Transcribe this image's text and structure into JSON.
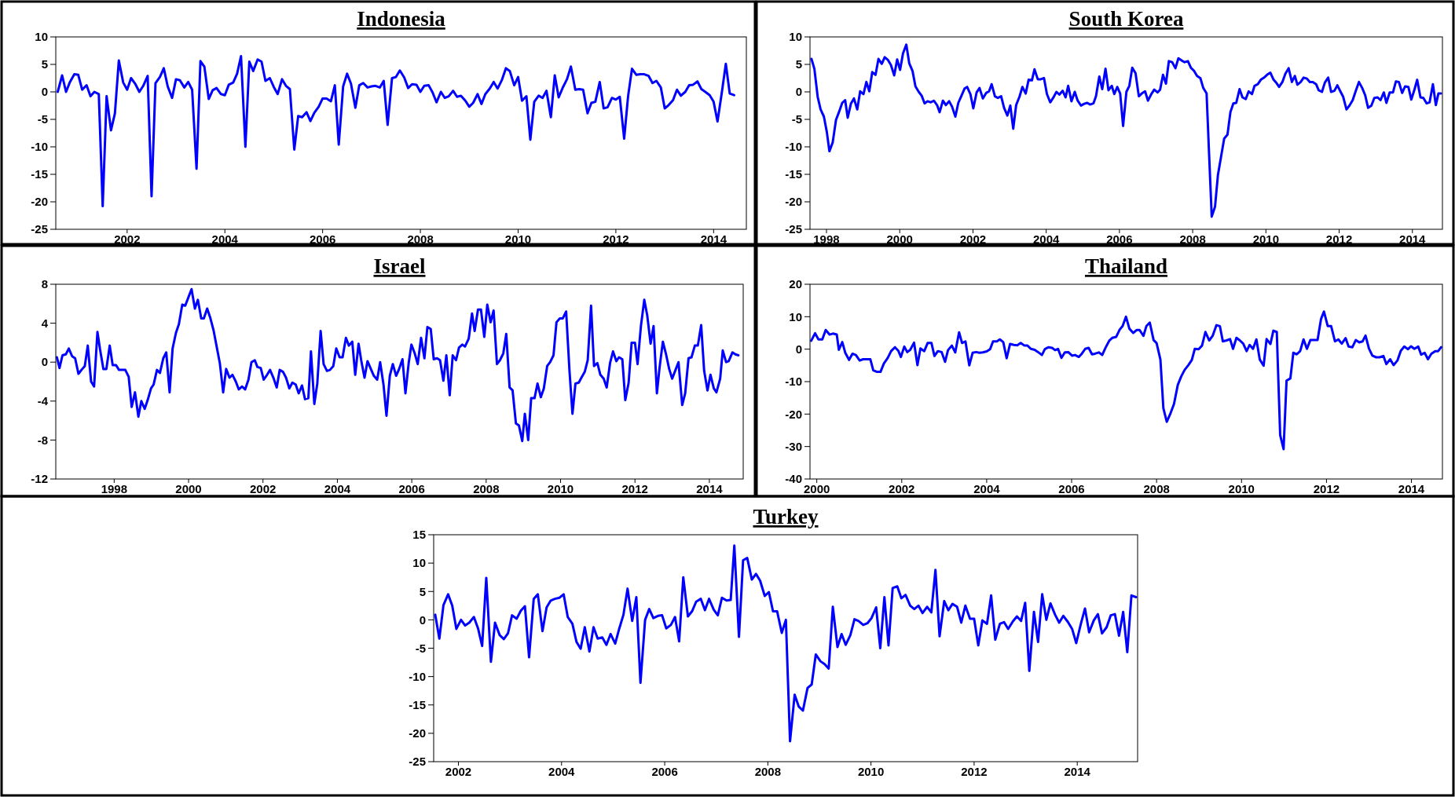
{
  "chart_data": [
    {
      "type": "line",
      "title": "Indonesia",
      "xlim": [
        2001.04,
        2015.17
      ],
      "ylim": [
        -25,
        10
      ],
      "yticks": [
        -25,
        -20,
        -15,
        -10,
        -5,
        0,
        5,
        10
      ],
      "xticks": [
        {
          "value": 2002.5,
          "label": "2002"
        },
        {
          "value": 2004.5,
          "label": "2004"
        },
        {
          "value": 2006.5,
          "label": "2006"
        },
        {
          "value": 2008.5,
          "label": "2008"
        },
        {
          "value": 2010.5,
          "label": "2010"
        },
        {
          "value": 2012.5,
          "label": "2012"
        },
        {
          "value": 2014.5,
          "label": "2014"
        }
      ],
      "x": [
        2001.08,
        2001.17,
        2001.25,
        2001.33,
        2001.42,
        2001.5,
        2001.58,
        2001.67,
        2001.75,
        2001.83,
        2001.92,
        2002.0,
        2002.08,
        2002.17,
        2002.25,
        2002.33,
        2002.42,
        2002.5,
        2002.58,
        2002.67,
        2002.75,
        2002.83,
        2002.92,
        2003.0,
        2003.08,
        2003.17,
        2003.25,
        2003.33,
        2003.42,
        2003.5,
        2003.58,
        2003.67,
        2003.75,
        2003.83,
        2003.92,
        2004.0,
        2004.08,
        2004.17,
        2004.25,
        2004.33,
        2004.42,
        2004.5,
        2004.58,
        2004.67,
        2004.75,
        2004.83,
        2004.92,
        2005.0,
        2005.08,
        2005.17,
        2005.25,
        2005.33,
        2005.42,
        2005.5,
        2005.58,
        2005.67,
        2005.75,
        2005.83,
        2005.92,
        2006.0,
        2006.08,
        2006.17,
        2006.25,
        2006.33,
        2006.42,
        2006.5,
        2006.58,
        2006.67,
        2006.75,
        2006.83,
        2006.92,
        2007.0,
        2007.08,
        2007.17,
        2007.25,
        2007.33,
        2007.42,
        2007.5,
        2007.58,
        2007.67,
        2007.75,
        2007.83,
        2007.92,
        2008.0,
        2008.08,
        2008.17,
        2008.25,
        2008.33,
        2008.42,
        2008.5,
        2008.58,
        2008.67,
        2008.75,
        2008.83,
        2008.92,
        2009.0,
        2009.08,
        2009.17,
        2009.25,
        2009.33,
        2009.42,
        2009.5,
        2009.58,
        2009.67,
        2009.75,
        2009.83,
        2009.92,
        2010.0,
        2010.08,
        2010.17,
        2010.25,
        2010.33,
        2010.42,
        2010.5,
        2010.58,
        2010.67,
        2010.75,
        2010.83,
        2010.92,
        2011.0,
        2011.08,
        2011.17,
        2011.25,
        2011.33,
        2011.42,
        2011.5,
        2011.58,
        2011.67,
        2011.75,
        2011.83,
        2011.92,
        2012.0,
        2012.08,
        2012.17,
        2012.25,
        2012.33,
        2012.42,
        2012.5,
        2012.58,
        2012.67,
        2012.75,
        2012.83,
        2012.92,
        2013.0,
        2013.08,
        2013.17,
        2013.25,
        2013.33,
        2013.42,
        2013.5,
        2013.58,
        2013.67,
        2013.75,
        2013.83,
        2013.92,
        2014.0,
        2014.08,
        2014.17,
        2014.25,
        2014.33,
        2014.42,
        2014.5,
        2014.58,
        2014.67,
        2014.75,
        2014.83,
        2014.92
      ],
      "series": [
        {
          "color": "#0000ff",
          "values": [
            0,
            3,
            0,
            1.8,
            3.2,
            3.1,
            0.4,
            1.2,
            -0.8,
            0,
            -0.4,
            -20.8,
            -0.8,
            -7,
            -3.9,
            5.7,
            1.7,
            0.4,
            2.5,
            1.4,
            0,
            1.1,
            2.9,
            -19,
            1.6,
            2.7,
            4.3,
            1.0,
            -1.1,
            2.3,
            2.1,
            0.8,
            1.8,
            0.4,
            -14,
            5.6,
            4.6,
            -1.3,
            0.3,
            0.7,
            -0.4,
            -0.6,
            1.3,
            1.7,
            3.3,
            6.5,
            -10,
            5.5,
            3.8,
            5.9,
            5.5,
            2.0,
            2.5,
            0.9,
            -0.4,
            2.3,
            1.1,
            0.5,
            -10.5,
            -4.4,
            -4.6,
            -3.7,
            -5.3,
            -3.8,
            -2.7,
            -1.2,
            -1.2,
            -1.7,
            1.2,
            -9.6,
            1.0,
            3.3,
            1.5,
            -2.9,
            1.2,
            1.6,
            0.8,
            1.0,
            1.1,
            0.8,
            2.0,
            -6,
            2.5,
            2.7,
            3.9,
            2.6,
            0.7,
            1.4,
            1.3,
            0,
            1.1,
            1.2,
            -0.1,
            -1.9,
            0,
            -1.1,
            -0.8,
            0.2,
            -0.9,
            -0.7,
            -1.6,
            -2.7,
            -2.0,
            -0.4,
            -2.2,
            -0.4,
            0.6,
            1.8,
            0.6,
            2.2,
            4.3,
            3.8,
            1.2,
            2.7,
            -1.6,
            -0.8,
            -8.7,
            -1.8,
            -0.7,
            -1.1,
            0.2,
            -4.6,
            3.0,
            -1.0,
            0.9,
            2.3,
            4.6,
            0.4,
            0.5,
            0.4,
            -3.9,
            -2.0,
            -1.8,
            1.8,
            -3.0,
            -2.8,
            -1.1,
            -1.4,
            -0.9,
            -8.5,
            -0.8,
            4.2,
            3.1,
            3.2,
            3.2,
            2.9,
            1.6,
            2.0,
            0.8,
            -3.0,
            -2.4,
            -1.5,
            0.4,
            -0.7,
            0,
            1.2,
            1.3,
            1.9,
            0.5,
            0,
            -0.6,
            -1.8,
            -5.4,
            0,
            5.1,
            -0.3,
            -0.6
          ]
        }
      ]
    },
    {
      "type": "line",
      "title": "South Korea",
      "xlim": [
        1998.05,
        2015.32
      ],
      "ylim": [
        -25,
        10
      ],
      "yticks": [
        -25,
        -20,
        -15,
        -10,
        -5,
        0,
        5,
        10
      ],
      "xticks": [
        {
          "value": 1998.5,
          "label": "1998"
        },
        {
          "value": 2000.5,
          "label": "2000"
        },
        {
          "value": 2002.5,
          "label": "2002"
        },
        {
          "value": 2004.5,
          "label": "2004"
        },
        {
          "value": 2006.5,
          "label": "2006"
        },
        {
          "value": 2008.5,
          "label": "2008"
        },
        {
          "value": 2010.5,
          "label": "2010"
        },
        {
          "value": 2012.5,
          "label": "2012"
        },
        {
          "value": 2014.5,
          "label": "2014"
        }
      ],
      "x": [
        1998.09,
        1998.17,
        1998.26,
        1998.34,
        1998.43,
        1998.51,
        1998.58,
        1998.67,
        1998.76,
        1998.84,
        1998.93,
        1999.01,
        1999.08,
        1999.17,
        1999.25,
        1999.34,
        1999.42,
        1999.51,
        1999.59,
        1999.67,
        1999.75,
        1999.84,
        1999.92,
        2000.01,
        2000.09,
        2000.18,
        2000.26,
        2000.35,
        2000.43,
        2000.51,
        2000.59,
        2000.68,
        2000.76,
        2000.85,
        2000.93,
        2001.02,
        2001.1,
        2001.18,
        2001.26,
        2001.35,
        2001.43,
        2001.52,
        2001.59,
        2001.68,
        2001.76,
        2001.85,
        2001.93,
        2002.02,
        2002.1,
        2002.18,
        2002.27,
        2002.34,
        2002.43,
        2002.51,
        2002.6,
        2002.68,
        2002.77,
        2002.86,
        2002.94,
        2003.01,
        2003.1,
        2003.18,
        2003.27,
        2003.35,
        2003.44,
        2003.52,
        2003.6,
        2003.68,
        2003.77,
        2003.85,
        2003.94,
        2004.02,
        2004.11,
        2004.18,
        2004.27,
        2004.35,
        2004.44,
        2004.52,
        2004.61,
        2004.69,
        2004.78,
        2004.86,
        2004.95,
        2005.03,
        2005.1,
        2005.19,
        2005.28,
        2005.36,
        2005.45,
        2005.53,
        2005.62,
        2005.7,
        2005.79,
        2005.86,
        2005.95,
        2006.03,
        2006.12,
        2006.2,
        2006.29,
        2006.36,
        2006.44,
        2006.52,
        2006.6,
        2006.69,
        2006.77,
        2006.85,
        2006.94,
        2007.03,
        2007.11,
        2007.2,
        2007.28,
        2007.37,
        2007.45,
        2007.54,
        2007.61,
        2007.69,
        2007.77,
        2007.85,
        2007.94,
        2008.03,
        2008.11,
        2008.2,
        2008.28,
        2008.37,
        2008.45,
        2008.54,
        2008.62,
        2008.71,
        2008.79,
        2008.88,
        2008.95,
        2009.02,
        2009.11,
        2009.19,
        2009.28,
        2009.36,
        2009.45,
        2009.53,
        2009.61,
        2009.69,
        2009.78,
        2009.86,
        2009.95,
        2010.03,
        2010.12,
        2010.19,
        2010.28,
        2010.36,
        2010.45,
        2010.53,
        2010.62,
        2010.71,
        2010.79,
        2010.86,
        2010.95,
        2011.03,
        2011.12,
        2011.21,
        2011.29,
        2011.36,
        2011.45,
        2011.53,
        2011.62,
        2011.7,
        2011.78,
        2011.87,
        2011.94,
        2012.03,
        2012.11,
        2012.2,
        2012.28,
        2012.37,
        2012.45,
        2012.54,
        2012.61,
        2012.7,
        2012.78,
        2012.87,
        2012.95,
        2013.04,
        2013.13,
        2013.21,
        2013.29,
        2013.38,
        2013.46,
        2013.55,
        2013.63,
        2013.72,
        2013.79,
        2013.88,
        2013.97,
        2014.05,
        2014.13,
        2014.22,
        2014.3,
        2014.39,
        2014.47,
        2014.56,
        2014.63,
        2014.72,
        2014.8,
        2014.89,
        2014.97,
        2015.06,
        2015.14,
        2015.21,
        2015.28
      ],
      "series": [
        {
          "color": "#0000ff",
          "values": [
            6.0,
            4.2,
            -0.9,
            -3.2,
            -4.5,
            -7.3,
            -10.8,
            -9.2,
            -5.1,
            -3.7,
            -2.0,
            -1.5,
            -4.7,
            -2.1,
            -1.2,
            -3.2,
            0.1,
            -0.4,
            1.8,
            0.1,
            3.6,
            3.1,
            6.0,
            5.1,
            6.3,
            5.8,
            4.9,
            3.0,
            5.9,
            4.0,
            7.0,
            8.6,
            5.2,
            3.8,
            1.0,
            0,
            -0.7,
            -2.1,
            -1.7,
            -1.9,
            -1.6,
            -2.4,
            -3.7,
            -1.6,
            -2.4,
            -1.7,
            -2.7,
            -4.5,
            -2.0,
            -0.8,
            0.6,
            0.9,
            -0.4,
            -3.0,
            -0.1,
            0.7,
            -1.2,
            -0.2,
            0.1,
            1.4,
            -0.8,
            -1.1,
            -0.8,
            -2.9,
            -4.3,
            -2.5,
            -6.7,
            -2.4,
            -0.9,
            0.9,
            -0.3,
            2.2,
            2.1,
            4.1,
            2.3,
            2.3,
            2.5,
            -0.4,
            -1.9,
            -1.1,
            0,
            -0.5,
            0.2,
            -1.0,
            1.1,
            -1.7,
            0,
            -1.6,
            -2.5,
            -2.2,
            -2.0,
            -2.3,
            -2.1,
            -0.8,
            2.8,
            0.5,
            4.2,
            0.3,
            1.1,
            -0.4,
            0.9,
            -0.3,
            -6.2,
            0,
            1.1,
            4.4,
            3.4,
            -0.8,
            -0.3,
            0.1,
            -1.6,
            -0.4,
            0.4,
            -0.1,
            0.4,
            3.1,
            1.5,
            5.6,
            5.4,
            4.3,
            6.1,
            5.7,
            5.4,
            5.6,
            4.4,
            3.8,
            2.9,
            2.5,
            0.7,
            -0.3,
            -11.6,
            -22.7,
            -20.9,
            -15.1,
            -11.6,
            -8.5,
            -7.8,
            -3.7,
            -2.1,
            -2.0,
            0.5,
            -1.0,
            -1.3,
            0.1,
            -0.4,
            1.1,
            1.4,
            2.2,
            2.6,
            3.1,
            3.5,
            2.2,
            1.6,
            0.9,
            1.8,
            3.3,
            4.3,
            1.8,
            2.9,
            1.3,
            1.8,
            2.6,
            2.4,
            1.8,
            1.8,
            1.4,
            0.3,
            0,
            1.7,
            2.6,
            0,
            0.2,
            1.2,
            0,
            -0.9,
            -3.2,
            -2.5,
            -1.5,
            0.1,
            1.8,
            0.7,
            -0.6,
            -2.9,
            -2.5,
            -1.1,
            -1.0,
            -1.5,
            -0.1,
            -2.0,
            -0.1,
            -0.1,
            1.9,
            1.8,
            -0.2,
            1.0,
            0.9,
            -1.4,
            0.5,
            2.2,
            -1.0,
            -1.1,
            -2.1,
            -1.9,
            1.4,
            -2.4,
            -0.3,
            -0.3
          ]
        }
      ]
    },
    {
      "type": "line",
      "title": "Israel",
      "xlim": [
        1996.93,
        2015.41
      ],
      "ylim": [
        -12,
        8
      ],
      "yticks": [
        -12,
        -8,
        -4,
        0,
        4,
        8
      ],
      "xticks": [
        {
          "value": 1998.5,
          "label": "1998"
        },
        {
          "value": 2000.5,
          "label": "2000"
        },
        {
          "value": 2002.5,
          "label": "2002"
        },
        {
          "value": 2004.5,
          "label": "2004"
        },
        {
          "value": 2006.5,
          "label": "2006"
        },
        {
          "value": 2008.5,
          "label": "2008"
        },
        {
          "value": 2010.5,
          "label": "2010"
        },
        {
          "value": 2012.5,
          "label": "2012"
        },
        {
          "value": 2014.5,
          "label": "2014"
        }
      ],
      "x": [
        1996.96,
        1997.03,
        1997.11,
        1997.2,
        1997.28,
        1997.37,
        1997.45,
        1997.54,
        1997.62,
        1997.71,
        1997.79,
        1997.88,
        1997.96,
        1998.05,
        1998.12,
        1998.21,
        1998.29,
        1998.38,
        1998.46,
        1998.55,
        1998.63,
        1998.72,
        1998.8,
        1998.89,
        1998.97,
        1999.06,
        1999.15,
        1999.23,
        1999.32,
        1999.4,
        1999.49,
        1999.56,
        1999.65,
        1999.73,
        1999.82,
        1999.9,
        1999.99,
        2000.07,
        2000.16,
        2000.24,
        2000.33,
        2000.41,
        2000.5,
        2000.58,
        2000.67,
        2000.75,
        2000.84,
        2000.91,
        2001.0,
        2001.08,
        2001.17,
        2001.25,
        2001.34,
        2001.43,
        2001.51,
        2001.6,
        2001.68,
        2001.77,
        2001.85,
        2001.94,
        2002.02,
        2002.11,
        2002.19,
        2002.28,
        2002.35,
        2002.44,
        2002.52,
        2002.61,
        2002.69,
        2002.78,
        2002.87,
        2002.95,
        2003.04,
        2003.12,
        2003.21,
        2003.29,
        2003.38,
        2003.46,
        2003.55,
        2003.63,
        2003.72,
        2003.79,
        2003.88,
        2003.96,
        2004.05,
        2004.13,
        2004.22,
        2004.3,
        2004.39,
        2004.47,
        2004.56,
        2004.64,
        2004.73,
        2004.81,
        2004.9,
        2004.98,
        2005.07,
        2005.14,
        2005.23,
        2005.31,
        2005.4,
        2005.48,
        2005.57,
        2005.65,
        2005.74,
        2005.82,
        2005.91,
        2005.99,
        2006.08,
        2006.16,
        2006.25,
        2006.33,
        2006.42,
        2006.49,
        2006.58,
        2006.66,
        2006.75,
        2006.84,
        2006.92,
        2007.01,
        2007.09,
        2007.18,
        2007.26,
        2007.35,
        2007.43,
        2007.52,
        2007.6,
        2007.69,
        2007.77,
        2007.86,
        2007.93,
        2008.03,
        2008.12,
        2008.19,
        2008.28,
        2008.36,
        2008.45,
        2008.53,
        2008.62,
        2008.7,
        2008.79,
        2008.87,
        2008.96,
        2009.04,
        2009.13,
        2009.21,
        2009.3,
        2009.38,
        2009.47,
        2009.54,
        2009.63,
        2009.71,
        2009.8,
        2009.88,
        2009.97,
        2010.05,
        2010.14,
        2010.22,
        2010.31,
        2010.39,
        2010.48,
        2010.56,
        2010.65,
        2010.74,
        2010.82,
        2010.9,
        2010.99,
        2011.06,
        2011.15,
        2011.23,
        2011.32,
        2011.4,
        2011.49,
        2011.57,
        2011.66,
        2011.74,
        2011.83,
        2011.91,
        2012.0,
        2012.07,
        2012.16,
        2012.24,
        2012.33,
        2012.41,
        2012.5,
        2012.57,
        2012.66,
        2012.75,
        2012.83,
        2012.92,
        2013.0,
        2013.09,
        2013.16,
        2013.25,
        2013.33,
        2013.42,
        2013.5,
        2013.59,
        2013.67,
        2013.77,
        2013.85,
        2013.94,
        2014.02,
        2014.11,
        2014.19,
        2014.28,
        2014.36,
        2014.45,
        2014.53,
        2014.62,
        2014.69,
        2014.79,
        2014.86,
        2014.95,
        2015.02,
        2015.12,
        2015.2,
        2015.28
      ],
      "series": [
        {
          "color": "#0000ff",
          "values": [
            0.5,
            -0.6,
            0.7,
            0.8,
            1.4,
            0.6,
            0.4,
            -1.2,
            -0.8,
            -0.4,
            1.7,
            -2.0,
            -2.5,
            3.1,
            1.3,
            -0.7,
            -0.7,
            1.7,
            -0.3,
            -0.3,
            -0.8,
            -0.8,
            -0.8,
            -1.5,
            -4.6,
            -3.1,
            -5.6,
            -4.0,
            -4.8,
            -3.9,
            -2.7,
            -2.3,
            -0.8,
            -1.1,
            0.4,
            1.0,
            -3.1,
            1.4,
            3.0,
            3.9,
            5.9,
            5.8,
            6.7,
            7.5,
            5.5,
            6.4,
            4.5,
            4.5,
            5.5,
            4.6,
            3.3,
            1.7,
            -0.1,
            -3.1,
            -0.7,
            -1.6,
            -1.3,
            -2.0,
            -2.8,
            -2.5,
            -2.8,
            -1.8,
            0,
            0.2,
            -0.5,
            -0.6,
            -1.8,
            -1.3,
            -0.8,
            -1.6,
            -2.6,
            -0.8,
            -1.0,
            -1.6,
            -2.7,
            -2.1,
            -2.3,
            -3.2,
            -2.4,
            -3.8,
            -3.7,
            1.1,
            -4.3,
            -2.2,
            3.2,
            -0.2,
            -0.9,
            -0.8,
            -0.4,
            1.4,
            0.5,
            0.5,
            2.5,
            1.7,
            2.1,
            -1.3,
            1.9,
            0.2,
            -1.6,
            0.1,
            -0.7,
            -1.4,
            -1.8,
            0,
            -2.3,
            -5.5,
            -1.4,
            -0.2,
            -1.4,
            -0.7,
            0.3,
            -3.2,
            0,
            1.8,
            0.9,
            -0.2,
            2.5,
            0.4,
            3.6,
            3.4,
            0.3,
            0.4,
            0.2,
            -1.9,
            0.7,
            -3.4,
            0.7,
            0.2,
            1.5,
            1.8,
            1.6,
            2.4,
            5.0,
            3.2,
            5.4,
            5.4,
            2.6,
            5.9,
            4.1,
            5.3,
            -0.2,
            0.2,
            0.9,
            2.9,
            -2.6,
            -2.9,
            -6.3,
            -6.5,
            -8.1,
            -5.3,
            -8.0,
            -3.7,
            -3.7,
            -2.2,
            -3.6,
            -2.7,
            -0.4,
            0,
            0.7,
            4.1,
            4.5,
            4.5,
            5.2,
            -0.9,
            -5.3,
            -2.2,
            -2.1,
            -1.6,
            -1.0,
            0.2,
            5.8,
            -0.4,
            -0.1,
            -1.3,
            -1.7,
            -2.6,
            -0.1,
            1.1,
            0.1,
            0.5,
            0.3,
            -3.9,
            -2.1,
            2.0,
            2.0,
            -0.2,
            3.7,
            6.4,
            4.8,
            1.9,
            3.7,
            -3.2,
            -0.6,
            2.1,
            0.9,
            -0.7,
            -1.7,
            -0.8,
            0,
            -4.4,
            -3.2,
            0.4,
            0.5,
            1.7,
            1.7,
            3.8,
            -0.9,
            -2.9,
            -1.3,
            -2.7,
            -3.1,
            -1.7,
            1.2,
            0,
            0.1,
            1.0,
            0.8,
            0.7
          ]
        }
      ]
    },
    {
      "type": "line",
      "title": "Thailand",
      "xlim": [
        2000.34,
        2015.23
      ],
      "ylim": [
        -40,
        20
      ],
      "yticks": [
        -40,
        -30,
        -20,
        -10,
        0,
        10,
        20
      ],
      "xticks": [
        {
          "value": 2000.5,
          "label": "2000"
        },
        {
          "value": 2002.5,
          "label": "2002"
        },
        {
          "value": 2004.5,
          "label": "2004"
        },
        {
          "value": 2006.5,
          "label": "2006"
        },
        {
          "value": 2008.5,
          "label": "2008"
        },
        {
          "value": 2010.5,
          "label": "2010"
        },
        {
          "value": 2012.5,
          "label": "2012"
        },
        {
          "value": 2014.5,
          "label": "2014"
        }
      ],
      "x": [
        2000.37,
        2000.46,
        2000.54,
        2000.63,
        2000.71,
        2000.8,
        2000.88,
        2000.97,
        2001.02,
        2001.1,
        2001.17,
        2001.26,
        2001.34,
        2001.42,
        2001.51,
        2001.59,
        2001.76,
        2001.83,
        2001.92,
        2002.0,
        2002.08,
        2002.17,
        2002.25,
        2002.34,
        2002.42,
        2002.48,
        2002.56,
        2002.63,
        2002.7,
        2002.79,
        2002.87,
        2002.94,
        2003.03,
        2003.11,
        2003.2,
        2003.27,
        2003.35,
        2003.44,
        2003.52,
        2003.59,
        2003.68,
        2003.76,
        2003.85,
        2003.92,
        2004.0,
        2004.09,
        2004.17,
        2004.25,
        2004.33,
        2004.41,
        2004.5,
        2004.58,
        2004.65,
        2004.74,
        2004.81,
        2004.89,
        2004.97,
        2005.05,
        2005.14,
        2005.22,
        2005.3,
        2005.39,
        2005.46,
        2005.54,
        2005.63,
        2005.71,
        2005.8,
        2005.87,
        2005.95,
        2006.04,
        2006.11,
        2006.18,
        2006.26,
        2006.34,
        2006.42,
        2006.51,
        2006.58,
        2006.67,
        2006.74,
        2006.82,
        2006.9,
        2006.98,
        2007.05,
        2007.14,
        2007.22,
        2007.3,
        2007.39,
        2007.46,
        2007.55,
        2007.63,
        2007.7,
        2007.78,
        2007.86,
        2007.95,
        2008.03,
        2008.1,
        2008.19,
        2008.26,
        2008.34,
        2008.43,
        2008.5,
        2008.59,
        2008.66,
        2008.74,
        2008.83,
        2008.91,
        2009.0,
        2009.08,
        2009.16,
        2009.25,
        2009.33,
        2009.4,
        2009.49,
        2009.57,
        2009.65,
        2009.74,
        2009.82,
        2009.91,
        2009.99,
        2010.06,
        2010.15,
        2010.23,
        2010.3,
        2010.38,
        2010.46,
        2010.54,
        2010.62,
        2010.69,
        2010.77,
        2010.85,
        2010.93,
        2011.02,
        2011.09,
        2011.18,
        2011.25,
        2011.33,
        2011.41,
        2011.49,
        2011.56,
        2011.65,
        2011.72,
        2011.8,
        2011.88,
        2011.96,
        2012.04,
        2012.12,
        2012.2,
        2012.29,
        2012.37,
        2012.44,
        2012.53,
        2012.61,
        2012.7,
        2012.78,
        2012.86,
        2012.95,
        2013.02,
        2013.11,
        2013.19,
        2013.27,
        2013.35,
        2013.42,
        2013.5,
        2013.58,
        2013.67,
        2013.75,
        2013.84,
        2013.91,
        2014.0,
        2014.08,
        2014.17,
        2014.25,
        2014.33,
        2014.42,
        2014.49,
        2014.57,
        2014.66,
        2014.73,
        2014.81,
        2014.89,
        2014.97,
        2015.06,
        2015.13,
        2015.2
      ],
      "series": [
        {
          "color": "#0000ff",
          "values": [
            2.6,
            4.9,
            3.0,
            3.0,
            5.9,
            4.5,
            4.8,
            4.5,
            -0.2,
            2.2,
            -1.1,
            -3.3,
            -1.4,
            -1.8,
            -3.5,
            -3.1,
            -3.1,
            -6.5,
            -7.0,
            -7.0,
            -4.4,
            -2.7,
            -0.6,
            0.6,
            -0.5,
            -2.4,
            0.8,
            -0.9,
            -0.2,
            2.0,
            -4.9,
            0.2,
            -0.6,
            1.9,
            1.9,
            -2.1,
            -0.6,
            -0.9,
            -3.9,
            -0.3,
            1.1,
            -1.0,
            5.2,
            1.9,
            2.4,
            -5.0,
            -1.1,
            -0.9,
            -1.1,
            -1.0,
            -0.7,
            0,
            2.4,
            2.4,
            3.0,
            2.2,
            -2.8,
            1.6,
            1.3,
            1.2,
            1.9,
            1.1,
            1.1,
            0.1,
            -0.2,
            -0.9,
            -1.8,
            0,
            0.6,
            0.4,
            -0.3,
            0.1,
            -2.7,
            -1.0,
            -0.9,
            -2.0,
            -1.8,
            -2.4,
            -1.4,
            0.1,
            0.4,
            -1.6,
            -1.4,
            -1.0,
            -1.8,
            0.5,
            2.7,
            3.5,
            3.8,
            6.0,
            7.1,
            10.0,
            6.3,
            5.0,
            5.9,
            5.9,
            4.1,
            7.1,
            8.2,
            2.8,
            1.9,
            -3.2,
            -18.2,
            -22.4,
            -19.7,
            -16.9,
            -11.0,
            -8.4,
            -6.4,
            -4.9,
            -3.3,
            0.1,
            0,
            1.1,
            5.3,
            2.7,
            4.1,
            7.4,
            7.1,
            2.4,
            2.7,
            3.1,
            0.1,
            3.5,
            2.7,
            1.7,
            -0.6,
            1.3,
            0.1,
            3.0,
            -3.2,
            -5.1,
            3.1,
            1.6,
            5.7,
            5.3,
            -26.5,
            -30.8,
            -9.7,
            -9.0,
            -1.1,
            -1.6,
            -0.6,
            3.0,
            0.1,
            2.8,
            2.8,
            2.8,
            9.2,
            11.6,
            7.1,
            7.1,
            2.4,
            3.0,
            1.7,
            3.4,
            0.8,
            0.6,
            2.8,
            2.1,
            2.4,
            4.2,
            0.2,
            -2.0,
            -2.5,
            -2.5,
            -2.1,
            -4.6,
            -3.1,
            -4.9,
            -3.5,
            -0.5,
            0.8,
            0,
            0.9,
            0.1,
            0.8,
            -1.7,
            -1.1,
            -3.1,
            -1.4,
            -0.6,
            -0.6,
            0.6
          ]
        }
      ]
    },
    {
      "type": "line",
      "title": "Turkey",
      "xlim": [
        2002.02,
        2015.67
      ],
      "ylim": [
        -25,
        15
      ],
      "yticks": [
        -25,
        -20,
        -15,
        -10,
        -5,
        0,
        5,
        10,
        15
      ],
      "xticks": [
        {
          "value": 2002.5,
          "label": "2002"
        },
        {
          "value": 2004.5,
          "label": "2004"
        },
        {
          "value": 2006.5,
          "label": "2006"
        },
        {
          "value": 2008.5,
          "label": "2008"
        },
        {
          "value": 2010.5,
          "label": "2010"
        },
        {
          "value": 2012.5,
          "label": "2012"
        },
        {
          "value": 2014.5,
          "label": "2014"
        }
      ],
      "x": [
        2002.05,
        2002.13,
        2002.21,
        2002.3,
        2002.38,
        2002.46,
        2002.55,
        2002.63,
        2002.71,
        2002.8,
        2002.88,
        2002.96,
        2003.04,
        2003.13,
        2003.21,
        2003.3,
        2003.38,
        2003.46,
        2003.54,
        2003.63,
        2003.71,
        2003.79,
        2003.87,
        2003.96,
        2004.04,
        2004.13,
        2004.21,
        2004.29,
        2004.37,
        2004.46,
        2004.54,
        2004.62,
        2004.71,
        2004.79,
        2004.87,
        2004.95,
        2005.04,
        2005.12,
        2005.2,
        2005.29,
        2005.37,
        2005.45,
        2005.54,
        2005.62,
        2005.7,
        2005.78,
        2005.87,
        2005.95,
        2006.03,
        2006.12,
        2006.2,
        2006.28,
        2006.37,
        2006.45,
        2006.53,
        2006.62,
        2006.7,
        2006.78,
        2006.86,
        2006.95,
        2007.03,
        2007.11,
        2007.2,
        2007.28,
        2007.36,
        2007.45,
        2007.53,
        2007.61,
        2007.7,
        2007.78,
        2007.85,
        2007.94,
        2008.02,
        2008.1,
        2008.19,
        2008.27,
        2008.35,
        2008.44,
        2008.52,
        2008.6,
        2008.68,
        2008.77,
        2008.85,
        2008.93,
        2009.02,
        2009.1,
        2009.18,
        2009.27,
        2009.35,
        2009.43,
        2009.52,
        2009.6,
        2009.68,
        2009.76,
        2009.85,
        2009.93,
        2010.01,
        2010.1,
        2010.18,
        2010.26,
        2010.35,
        2010.43,
        2010.51,
        2010.6,
        2010.68,
        2010.76,
        2010.84,
        2010.92,
        2011.01,
        2011.09,
        2011.17,
        2011.26,
        2011.34,
        2011.42,
        2011.5,
        2011.59,
        2011.67,
        2011.75,
        2011.83,
        2011.92,
        2012.0,
        2012.08,
        2012.17,
        2012.25,
        2012.33,
        2012.42,
        2012.5,
        2012.58,
        2012.66,
        2012.75,
        2012.83,
        2012.91,
        2013.0,
        2013.08,
        2013.16,
        2013.25,
        2013.33,
        2013.41,
        2013.49,
        2013.57,
        2013.66,
        2013.74,
        2013.82,
        2013.9,
        2013.98,
        2014.07,
        2014.15,
        2014.23,
        2014.32,
        2014.4,
        2014.48,
        2014.57,
        2014.65,
        2014.73,
        2014.82,
        2014.9,
        2014.98,
        2015.07,
        2015.15,
        2015.23,
        2015.31,
        2015.39,
        2015.47,
        2015.55,
        2015.64
      ],
      "series": [
        {
          "color": "#0000ff",
          "values": [
            0.9,
            -3.3,
            2.6,
            4.5,
            2.5,
            -1.6,
            0,
            -1.0,
            -0.5,
            0.5,
            -1.5,
            -4.6,
            7.4,
            -7.4,
            -0.5,
            -2.7,
            -3.4,
            -2.4,
            0.8,
            0.2,
            1.6,
            2.4,
            -6.6,
            3.7,
            4.5,
            -2.0,
            2.2,
            3.4,
            3.7,
            3.9,
            4.5,
            0.5,
            -0.7,
            -3.9,
            -5.1,
            -1.3,
            -5.6,
            -1.3,
            -3.3,
            -3.1,
            -4.4,
            -2.5,
            -4.2,
            -1.5,
            0.9,
            5.5,
            -0.2,
            4.0,
            -11.1,
            0,
            1.9,
            0.3,
            0.7,
            0.8,
            -1.5,
            -0.9,
            0.5,
            -3.8,
            7.5,
            0.6,
            1.5,
            3.2,
            3.7,
            1.7,
            3.7,
            1.8,
            0.8,
            3.9,
            3.4,
            3.5,
            13.1,
            -3.0,
            10.5,
            10.9,
            7.1,
            8.1,
            6.9,
            4.2,
            4.9,
            1.5,
            1.5,
            -2.3,
            0,
            -21.4,
            -13.2,
            -15.3,
            -16.0,
            -12.0,
            -11.4,
            -6.1,
            -7.3,
            -7.8,
            -8.6,
            2.3,
            -4.8,
            -2.5,
            -4.4,
            -2.7,
            0.1,
            -0.2,
            -0.9,
            -0.6,
            0.3,
            2.2,
            -5.0,
            4.0,
            -4.5,
            5.6,
            5.9,
            3.8,
            4.4,
            2.5,
            1.9,
            2.5,
            1.2,
            2.3,
            1.3,
            8.8,
            -2.9,
            3.3,
            1.7,
            2.8,
            2.3,
            -0.5,
            2.5,
            0.2,
            0.2,
            -4.5,
            -0.1,
            -0.7,
            4.3,
            -3.5,
            -0.7,
            -0.4,
            -1.6,
            -0.3,
            0.6,
            -0.2,
            3.0,
            -9.0,
            1.4,
            -3.9,
            4.5,
            0,
            2.9,
            0.9,
            -0.5,
            0.7,
            -0.4,
            -1.6,
            -4.1,
            -0.7,
            2.0,
            -2.2,
            -0.1,
            1.0,
            -2.4,
            -1.3,
            0.8,
            1.0,
            -2.8,
            1.4,
            -5.7,
            4.3,
            4.0
          ]
        }
      ]
    }
  ]
}
